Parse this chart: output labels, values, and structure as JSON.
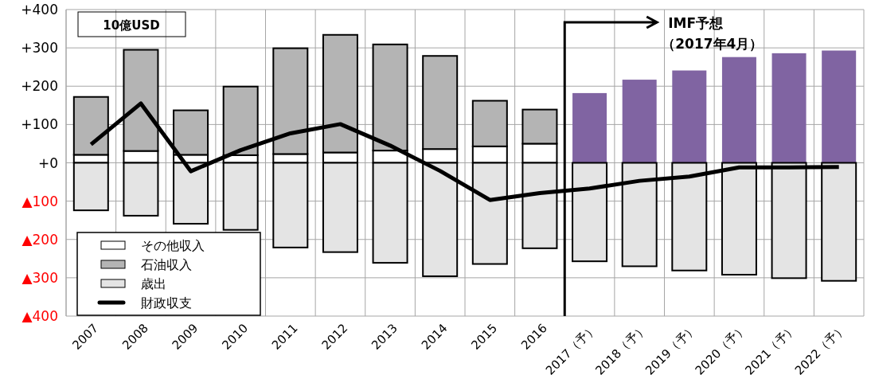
{
  "chart_data": {
    "type": "bar",
    "ylabel": "10億USD",
    "stacked": true,
    "grid": true,
    "legend": "bottom left",
    "categories": [
      "2007",
      "2008",
      "2009",
      "2010",
      "2011",
      "2012",
      "2013",
      "2014",
      "2015",
      "2016",
      "2017（予）",
      "2018（予）",
      "2019（予）",
      "2020（予）",
      "2021（予）",
      "2022（予）"
    ],
    "ylim": [
      -400,
      400
    ],
    "yticks": [
      {
        "value": 400,
        "label": "+400"
      },
      {
        "value": 300,
        "label": "+300"
      },
      {
        "value": 200,
        "label": "+200"
      },
      {
        "value": 100,
        "label": "+100"
      },
      {
        "value": 0,
        "label": "+0"
      },
      {
        "value": -100,
        "label": "▲100"
      },
      {
        "value": -200,
        "label": "▲200"
      },
      {
        "value": -300,
        "label": "▲300"
      },
      {
        "value": -400,
        "label": "▲400"
      }
    ],
    "series": [
      {
        "name": "その他収入",
        "color": "#ffffff",
        "values": [
          21,
          31,
          21,
          20,
          23,
          27,
          32,
          36,
          43,
          50,
          null,
          null,
          null,
          null,
          null,
          null
        ]
      },
      {
        "name": "石油収入",
        "color": "#b4b4b4",
        "values": [
          151,
          264,
          116,
          179,
          276,
          307,
          277,
          243,
          119,
          89,
          null,
          null,
          null,
          null,
          null,
          null
        ]
      },
      {
        "color": "#8064a2",
        "values": [
          null,
          null,
          null,
          null,
          null,
          null,
          null,
          null,
          null,
          null,
          182,
          217,
          241,
          276,
          286,
          293
        ]
      },
      {
        "name": "歳出",
        "color": "#e4e4e4",
        "values": [
          -124,
          -138,
          -159,
          -175,
          -221,
          -233,
          -261,
          -296,
          -264,
          -223,
          -257,
          -270,
          -281,
          -292,
          -301,
          -308
        ]
      },
      {
        "name": "財政収支",
        "type": "line",
        "color": "#000000",
        "values": [
          48,
          155,
          -22,
          33,
          77,
          101,
          45,
          -21,
          -97,
          -79,
          -67,
          -47,
          -36,
          -12,
          -12,
          -11
        ]
      }
    ],
    "annotations": [
      "IMF予想",
      "（2017年4月）"
    ]
  }
}
